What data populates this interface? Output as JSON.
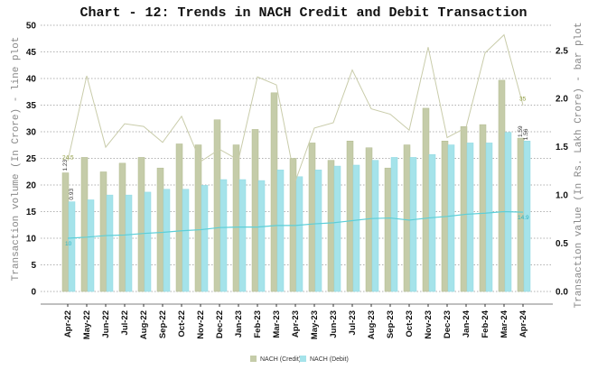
{
  "chart_data": {
    "type": "bar+line",
    "title": "Chart - 12: Trends in NACH Credit and Debit Transaction",
    "ylabel_left": "Transaction volume (In Crore) - line plot",
    "ylabel_right": "Transaction value (In Rs. Lakh Crore) - bar plot",
    "ylim_left": [
      0,
      50
    ],
    "yticks_left": [
      0,
      5,
      10,
      15,
      20,
      25,
      30,
      35,
      40,
      45,
      50
    ],
    "ylim_right": [
      0,
      2.76
    ],
    "yticks_right": [
      "0.0",
      "0.5",
      "1.0",
      "1.5",
      "2.0",
      "2.5"
    ],
    "grid": true,
    "legend_position": "bottom",
    "categories": [
      "Apr-22",
      "May-22",
      "Jun-22",
      "Jul-22",
      "Aug-22",
      "Sep-22",
      "Oct-22",
      "Nov-22",
      "Dec-22",
      "Jan-23",
      "Feb-23",
      "Mar-23",
      "Apr-23",
      "May-23",
      "Jun-23",
      "Jul-23",
      "Aug-23",
      "Sep-23",
      "Oct-23",
      "Nov-23",
      "Dec-23",
      "Jan-24",
      "Feb-24",
      "Mar-24",
      "Apr-24"
    ],
    "bar_series": [
      {
        "name": "NACH (Credit)",
        "color": "#c5cca9",
        "values": [
          1.23,
          1.39,
          1.24,
          1.33,
          1.39,
          1.28,
          1.53,
          1.52,
          1.78,
          1.52,
          1.68,
          2.06,
          1.38,
          1.54,
          1.36,
          1.56,
          1.49,
          1.28,
          1.52,
          1.9,
          1.56,
          1.71,
          1.73,
          2.19,
          1.59
        ]
      },
      {
        "name": "NACH (Debit)",
        "color": "#a5e3ea",
        "values": [
          0.93,
          0.95,
          1.0,
          1.0,
          1.03,
          1.06,
          1.06,
          1.1,
          1.16,
          1.16,
          1.15,
          1.26,
          1.19,
          1.26,
          1.3,
          1.31,
          1.36,
          1.39,
          1.39,
          1.42,
          1.52,
          1.54,
          1.54,
          1.65,
          1.56
        ]
      }
    ],
    "line_series": [
      {
        "color": "#c9ccaa",
        "values": [
          24.5,
          40.5,
          27.1,
          31.5,
          31.0,
          28.0,
          32.9,
          24.4,
          26.7,
          24.7,
          40.3,
          38.8,
          20.7,
          30.7,
          31.7,
          41.6,
          34.3,
          33.3,
          30.3,
          45.9,
          28.9,
          30.8,
          44.8,
          48.2,
          35
        ]
      },
      {
        "color": "#5ccfd8",
        "values": [
          10,
          10.2,
          10.5,
          10.6,
          10.9,
          11.1,
          11.4,
          11.6,
          12.0,
          12.1,
          12.1,
          12.4,
          12.4,
          12.7,
          12.9,
          13.3,
          13.7,
          13.8,
          13.4,
          13.8,
          14.1,
          14.5,
          14.7,
          15.0,
          14.9
        ]
      }
    ],
    "data_labels": {
      "credit_bar_first": "1.23",
      "debit_bar_first": "0.93",
      "credit_bar_last": "1.59",
      "debit_bar_last": "1.56",
      "credit_line_first": "24.5",
      "debit_line_first": "10",
      "credit_line_last": "35",
      "debit_line_last": "14.9"
    }
  }
}
